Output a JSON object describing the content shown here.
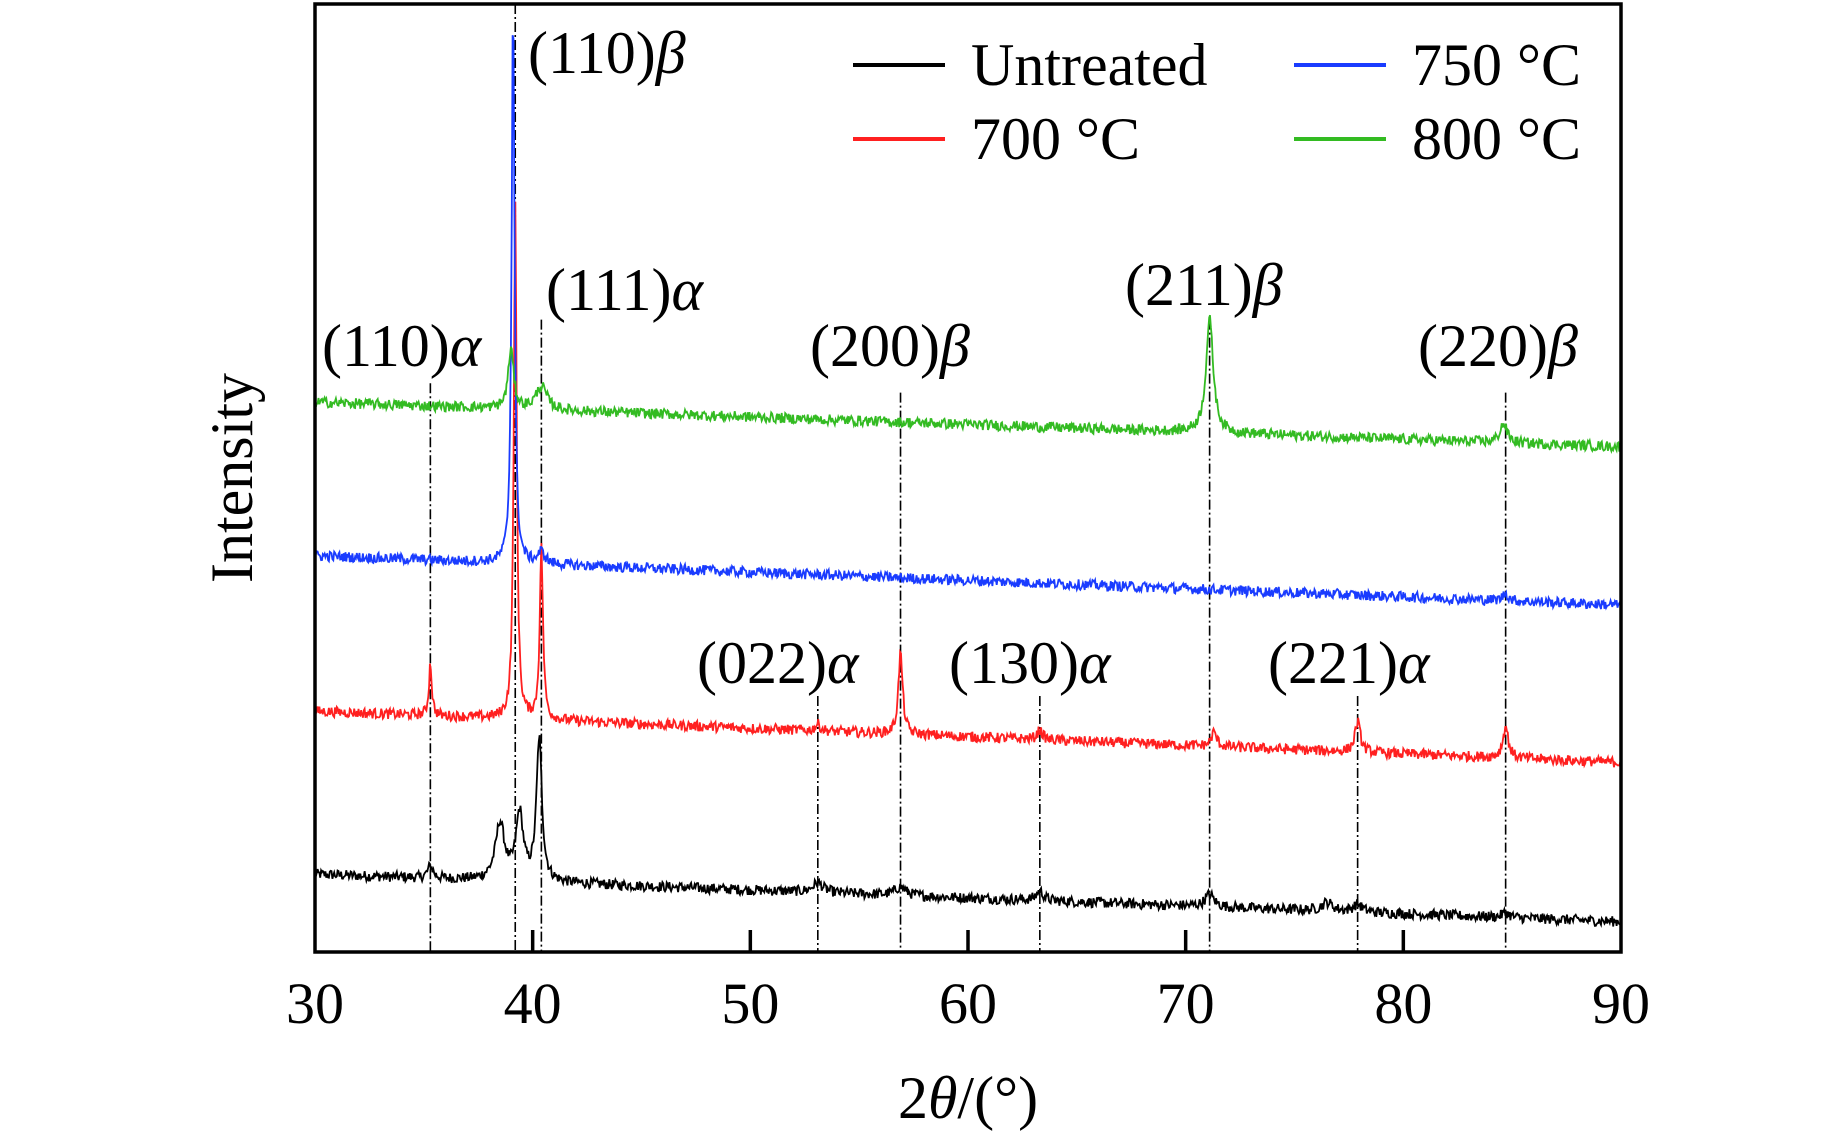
{
  "chart_data": {
    "type": "line",
    "title": "",
    "xlabel": "2θ/(°)",
    "xlabel_parts": {
      "prefix": "2",
      "theta": "θ",
      "suffix": "/(°)"
    },
    "ylabel": "Intensity",
    "xlim": [
      30,
      90
    ],
    "ylim": [
      0,
      100
    ],
    "y_ticks_shown": false,
    "grid": false,
    "legend_placement": "top-right",
    "x_ticks": [
      30,
      40,
      50,
      60,
      70,
      80,
      90
    ],
    "x_tick_labels": [
      "30",
      "40",
      "50",
      "60",
      "70",
      "80",
      "90"
    ],
    "series": [
      {
        "name": "Untreated",
        "color": "#000000",
        "baseline": [
          8.2,
          3.2
        ],
        "peaks": [
          [
            35.3,
            1.3,
            0.15
          ],
          [
            38.5,
            6,
            0.25
          ],
          [
            39.4,
            7,
            0.2
          ],
          [
            40.3,
            15,
            0.15
          ],
          [
            53.1,
            1,
            0.3
          ],
          [
            56.9,
            0.9,
            0.3
          ],
          [
            63.3,
            1,
            0.2
          ],
          [
            71.1,
            1.3,
            0.25
          ],
          [
            76.5,
            0.9,
            0.3
          ],
          [
            77.9,
            0.8,
            0.25
          ],
          [
            84.7,
            0.5,
            0.2
          ]
        ]
      },
      {
        "name": "700 °C",
        "color": "#ff2020",
        "baseline": [
          25.4,
          20
        ],
        "peaks": [
          [
            35.3,
            5.5,
            0.08
          ],
          [
            39.2,
            54,
            0.08
          ],
          [
            40.4,
            18,
            0.09
          ],
          [
            53.1,
            0.7,
            0.15
          ],
          [
            56.9,
            8.5,
            0.12
          ],
          [
            63.3,
            1,
            0.15
          ],
          [
            71.3,
            1.5,
            0.15
          ],
          [
            77.9,
            3.2,
            0.15
          ],
          [
            84.7,
            3.3,
            0.15
          ]
        ]
      },
      {
        "name": "750 °C",
        "color": "#1a3cff",
        "baseline": [
          41.8,
          36.6
        ],
        "peaks": [
          [
            39.1,
            59,
            0.08
          ],
          [
            40.4,
            1.2,
            0.2
          ],
          [
            84.7,
            0.8,
            0.15
          ]
        ]
      },
      {
        "name": "800 °C",
        "color": "#33bb22",
        "baseline": [
          58,
          53.3
        ],
        "peaks": [
          [
            39.0,
            6.3,
            0.15
          ],
          [
            40.4,
            2.5,
            0.3
          ],
          [
            71.1,
            12,
            0.2
          ],
          [
            84.6,
            2,
            0.2
          ]
        ]
      }
    ],
    "reference_lines": [
      {
        "x": 35.3,
        "top": 60
      },
      {
        "x": 39.2,
        "top": 100
      },
      {
        "x": 40.4,
        "top": 66.7
      },
      {
        "x": 53.1,
        "top": 27
      },
      {
        "x": 56.9,
        "top": 59
      },
      {
        "x": 63.3,
        "top": 27
      },
      {
        "x": 71.1,
        "top": 66.7
      },
      {
        "x": 77.9,
        "top": 27
      },
      {
        "x": 84.7,
        "top": 59
      }
    ],
    "annotations": [
      {
        "hkl": "(110)",
        "phase": "β",
        "x": 39.2
      },
      {
        "hkl": "(111)",
        "phase": "α",
        "x": 40.4
      },
      {
        "hkl": "(110)",
        "phase": "α",
        "x": 35.3
      },
      {
        "hkl": "(200)",
        "phase": "β",
        "x": 56.9
      },
      {
        "hkl": "(211)",
        "phase": "β",
        "x": 71.1
      },
      {
        "hkl": "(220)",
        "phase": "β",
        "x": 84.7
      },
      {
        "hkl": "(022)",
        "phase": "α",
        "x": 53.1
      },
      {
        "hkl": "(130)",
        "phase": "α",
        "x": 63.3
      },
      {
        "hkl": "(221)",
        "phase": "α",
        "x": 77.9
      }
    ]
  }
}
